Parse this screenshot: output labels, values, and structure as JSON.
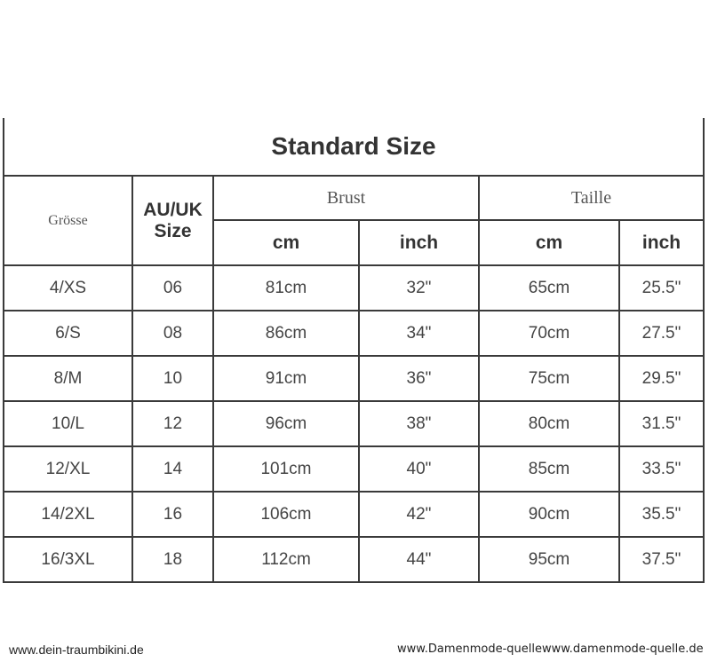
{
  "title": "Standard Size",
  "headers": {
    "size": "Grösse",
    "auuk": "AU/UK",
    "auuk2": "Size",
    "brust": "Brust",
    "taille": "Taille",
    "cm": "cm",
    "inch": "inch"
  },
  "rows": [
    [
      "4/XS",
      "06",
      "81cm",
      "32\"",
      "65cm",
      "25.5\""
    ],
    [
      "6/S",
      "08",
      "86cm",
      "34\"",
      "70cm",
      "27.5\""
    ],
    [
      "8/M",
      "10",
      "91cm",
      "36\"",
      "75cm",
      "29.5\""
    ],
    [
      "10/L",
      "12",
      "96cm",
      "38\"",
      "80cm",
      "31.5\""
    ],
    [
      "12/XL",
      "14",
      "101cm",
      "40\"",
      "85cm",
      "33.5\""
    ],
    [
      "14/2XL",
      "16",
      "106cm",
      "42\"",
      "90cm",
      "35.5\""
    ],
    [
      "16/3XL",
      "18",
      "112cm",
      "44\"",
      "95cm",
      "37.5\""
    ]
  ],
  "watermarks": {
    "left": "www.dein-traumbikini.de",
    "right": "www.Damenmode-quellewww.damenmode-quelle.de"
  }
}
